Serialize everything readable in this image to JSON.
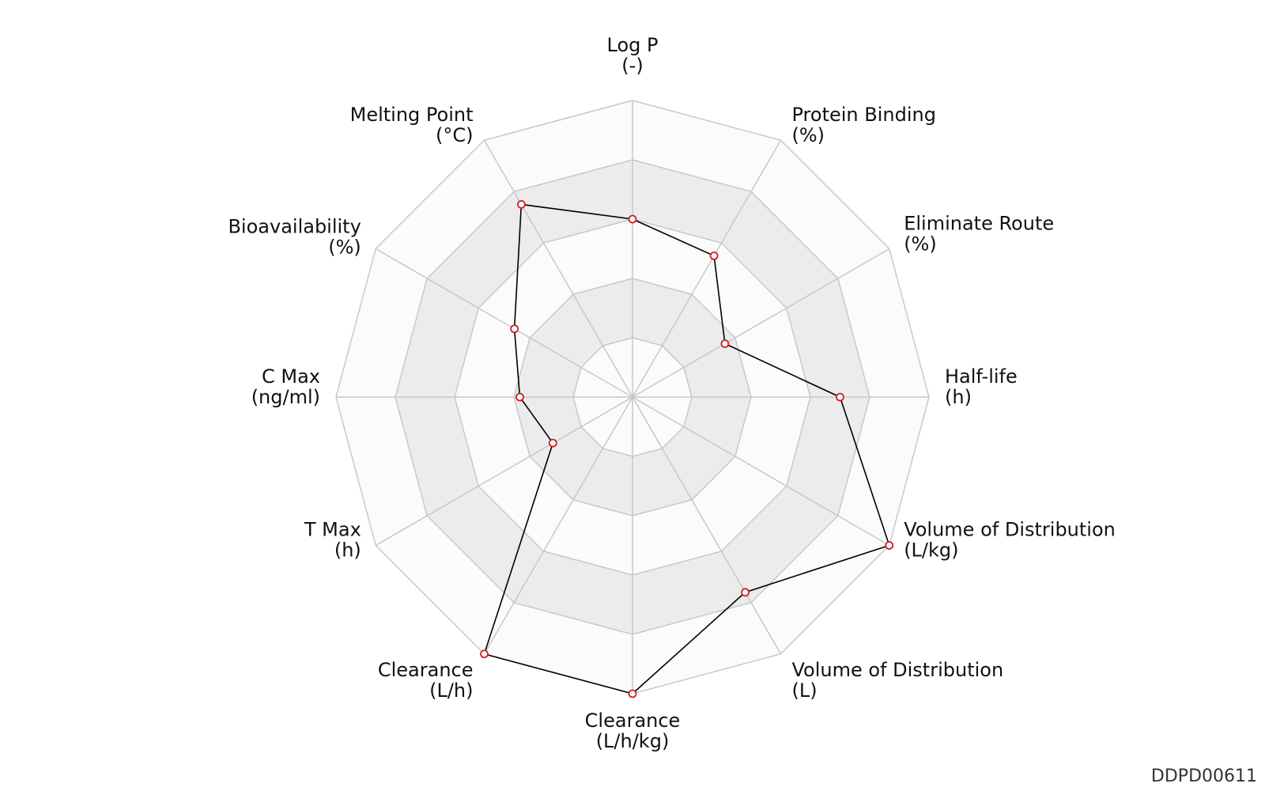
{
  "chart_data": {
    "type": "radar",
    "title": "",
    "scale": {
      "min": 0,
      "max": 10,
      "rings": 5
    },
    "grid": true,
    "colors": {
      "line": "#000000",
      "marker": "#cc2222",
      "ring_band": "#ececec",
      "ring_light": "#fbfbfb",
      "grid_line": "#c8c8c8"
    },
    "axes": [
      {
        "name": "Log P",
        "unit": "(-)"
      },
      {
        "name": "Protein Binding",
        "unit": "(%)"
      },
      {
        "name": "Eliminate Route",
        "unit": "(%)"
      },
      {
        "name": "Half-life",
        "unit": "(h)"
      },
      {
        "name": "Volume of Distribution",
        "unit": "(L/kg)"
      },
      {
        "name": "Volume of Distribution",
        "unit": "(L)"
      },
      {
        "name": "Clearance",
        "unit": "(L/h/kg)"
      },
      {
        "name": "Clearance",
        "unit": "(L/h)"
      },
      {
        "name": "T Max",
        "unit": "(h)"
      },
      {
        "name": "C Max",
        "unit": "(ng/ml)"
      },
      {
        "name": "Bioavailability",
        "unit": "(%)"
      },
      {
        "name": "Melting Point",
        "unit": "(°C)"
      }
    ],
    "series": [
      {
        "values": [
          6.0,
          5.5,
          3.6,
          7.0,
          10.0,
          7.6,
          10.0,
          10.0,
          3.1,
          3.8,
          4.6,
          7.5
        ]
      }
    ]
  },
  "figure_id": "DDPD00611"
}
